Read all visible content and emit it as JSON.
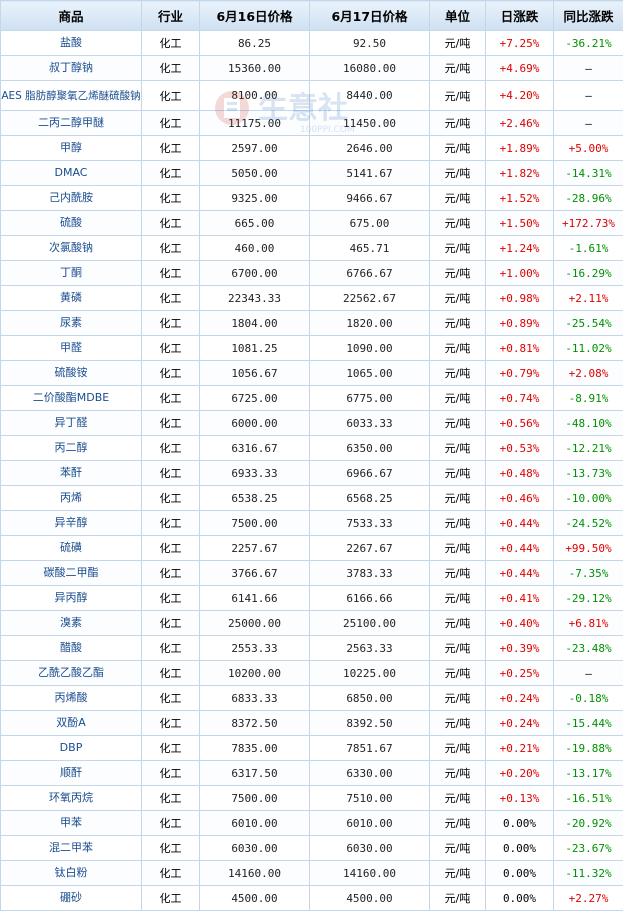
{
  "headers": [
    "商品",
    "行业",
    "6月16日价格",
    "6月17日价格",
    "单位",
    "日涨跌",
    "同比涨跌"
  ],
  "watermark": {
    "text": "生意社",
    "url": "100PPI.COM"
  },
  "rows": [
    {
      "name": "盐酸",
      "industry": "化工",
      "p16": "86.25",
      "p17": "92.50",
      "unit": "元/吨",
      "day": "+7.25%",
      "yoy": "-36.21%"
    },
    {
      "name": "叔丁醇钠",
      "industry": "化工",
      "p16": "15360.00",
      "p17": "16080.00",
      "unit": "元/吨",
      "day": "+4.69%",
      "yoy": "—"
    },
    {
      "name": "AES 脂肪醇聚氧乙烯醚硫酸钠",
      "industry": "化工",
      "p16": "8100.00",
      "p17": "8440.00",
      "unit": "元/吨",
      "day": "+4.20%",
      "yoy": "—"
    },
    {
      "name": "二丙二醇甲醚",
      "industry": "化工",
      "p16": "11175.00",
      "p17": "11450.00",
      "unit": "元/吨",
      "day": "+2.46%",
      "yoy": "—"
    },
    {
      "name": "甲醇",
      "industry": "化工",
      "p16": "2597.00",
      "p17": "2646.00",
      "unit": "元/吨",
      "day": "+1.89%",
      "yoy": "+5.00%"
    },
    {
      "name": "DMAC",
      "industry": "化工",
      "p16": "5050.00",
      "p17": "5141.67",
      "unit": "元/吨",
      "day": "+1.82%",
      "yoy": "-14.31%"
    },
    {
      "name": "己内酰胺",
      "industry": "化工",
      "p16": "9325.00",
      "p17": "9466.67",
      "unit": "元/吨",
      "day": "+1.52%",
      "yoy": "-28.96%"
    },
    {
      "name": "硫酸",
      "industry": "化工",
      "p16": "665.00",
      "p17": "675.00",
      "unit": "元/吨",
      "day": "+1.50%",
      "yoy": "+172.73%"
    },
    {
      "name": "次氯酸钠",
      "industry": "化工",
      "p16": "460.00",
      "p17": "465.71",
      "unit": "元/吨",
      "day": "+1.24%",
      "yoy": "-1.61%"
    },
    {
      "name": "丁酮",
      "industry": "化工",
      "p16": "6700.00",
      "p17": "6766.67",
      "unit": "元/吨",
      "day": "+1.00%",
      "yoy": "-16.29%"
    },
    {
      "name": "黄磷",
      "industry": "化工",
      "p16": "22343.33",
      "p17": "22562.67",
      "unit": "元/吨",
      "day": "+0.98%",
      "yoy": "+2.11%"
    },
    {
      "name": "尿素",
      "industry": "化工",
      "p16": "1804.00",
      "p17": "1820.00",
      "unit": "元/吨",
      "day": "+0.89%",
      "yoy": "-25.54%"
    },
    {
      "name": "甲醛",
      "industry": "化工",
      "p16": "1081.25",
      "p17": "1090.00",
      "unit": "元/吨",
      "day": "+0.81%",
      "yoy": "-11.02%"
    },
    {
      "name": "硫酸铵",
      "industry": "化工",
      "p16": "1056.67",
      "p17": "1065.00",
      "unit": "元/吨",
      "day": "+0.79%",
      "yoy": "+2.08%"
    },
    {
      "name": "二价酸酯MDBE",
      "industry": "化工",
      "p16": "6725.00",
      "p17": "6775.00",
      "unit": "元/吨",
      "day": "+0.74%",
      "yoy": "-8.91%"
    },
    {
      "name": "异丁醛",
      "industry": "化工",
      "p16": "6000.00",
      "p17": "6033.33",
      "unit": "元/吨",
      "day": "+0.56%",
      "yoy": "-48.10%"
    },
    {
      "name": "丙二醇",
      "industry": "化工",
      "p16": "6316.67",
      "p17": "6350.00",
      "unit": "元/吨",
      "day": "+0.53%",
      "yoy": "-12.21%"
    },
    {
      "name": "苯酐",
      "industry": "化工",
      "p16": "6933.33",
      "p17": "6966.67",
      "unit": "元/吨",
      "day": "+0.48%",
      "yoy": "-13.73%"
    },
    {
      "name": "丙烯",
      "industry": "化工",
      "p16": "6538.25",
      "p17": "6568.25",
      "unit": "元/吨",
      "day": "+0.46%",
      "yoy": "-10.00%"
    },
    {
      "name": "异辛醇",
      "industry": "化工",
      "p16": "7500.00",
      "p17": "7533.33",
      "unit": "元/吨",
      "day": "+0.44%",
      "yoy": "-24.52%"
    },
    {
      "name": "硫磺",
      "industry": "化工",
      "p16": "2257.67",
      "p17": "2267.67",
      "unit": "元/吨",
      "day": "+0.44%",
      "yoy": "+99.50%"
    },
    {
      "name": "碳酸二甲酯",
      "industry": "化工",
      "p16": "3766.67",
      "p17": "3783.33",
      "unit": "元/吨",
      "day": "+0.44%",
      "yoy": "-7.35%"
    },
    {
      "name": "异丙醇",
      "industry": "化工",
      "p16": "6141.66",
      "p17": "6166.66",
      "unit": "元/吨",
      "day": "+0.41%",
      "yoy": "-29.12%"
    },
    {
      "name": "溴素",
      "industry": "化工",
      "p16": "25000.00",
      "p17": "25100.00",
      "unit": "元/吨",
      "day": "+0.40%",
      "yoy": "+6.81%"
    },
    {
      "name": "醋酸",
      "industry": "化工",
      "p16": "2553.33",
      "p17": "2563.33",
      "unit": "元/吨",
      "day": "+0.39%",
      "yoy": "-23.48%"
    },
    {
      "name": "乙酰乙酸乙酯",
      "industry": "化工",
      "p16": "10200.00",
      "p17": "10225.00",
      "unit": "元/吨",
      "day": "+0.25%",
      "yoy": "—"
    },
    {
      "name": "丙烯酸",
      "industry": "化工",
      "p16": "6833.33",
      "p17": "6850.00",
      "unit": "元/吨",
      "day": "+0.24%",
      "yoy": "-0.18%"
    },
    {
      "name": "双酚A",
      "industry": "化工",
      "p16": "8372.50",
      "p17": "8392.50",
      "unit": "元/吨",
      "day": "+0.24%",
      "yoy": "-15.44%"
    },
    {
      "name": "DBP",
      "industry": "化工",
      "p16": "7835.00",
      "p17": "7851.67",
      "unit": "元/吨",
      "day": "+0.21%",
      "yoy": "-19.88%"
    },
    {
      "name": "顺酐",
      "industry": "化工",
      "p16": "6317.50",
      "p17": "6330.00",
      "unit": "元/吨",
      "day": "+0.20%",
      "yoy": "-13.17%"
    },
    {
      "name": "环氧丙烷",
      "industry": "化工",
      "p16": "7500.00",
      "p17": "7510.00",
      "unit": "元/吨",
      "day": "+0.13%",
      "yoy": "-16.51%"
    },
    {
      "name": "甲苯",
      "industry": "化工",
      "p16": "6010.00",
      "p17": "6010.00",
      "unit": "元/吨",
      "day": "0.00%",
      "yoy": "-20.92%"
    },
    {
      "name": "混二甲苯",
      "industry": "化工",
      "p16": "6030.00",
      "p17": "6030.00",
      "unit": "元/吨",
      "day": "0.00%",
      "yoy": "-23.67%"
    },
    {
      "name": "钛白粉",
      "industry": "化工",
      "p16": "14160.00",
      "p17": "14160.00",
      "unit": "元/吨",
      "day": "0.00%",
      "yoy": "-11.32%"
    },
    {
      "name": "硼砂",
      "industry": "化工",
      "p16": "4500.00",
      "p17": "4500.00",
      "unit": "元/吨",
      "day": "0.00%",
      "yoy": "+2.27%"
    }
  ]
}
